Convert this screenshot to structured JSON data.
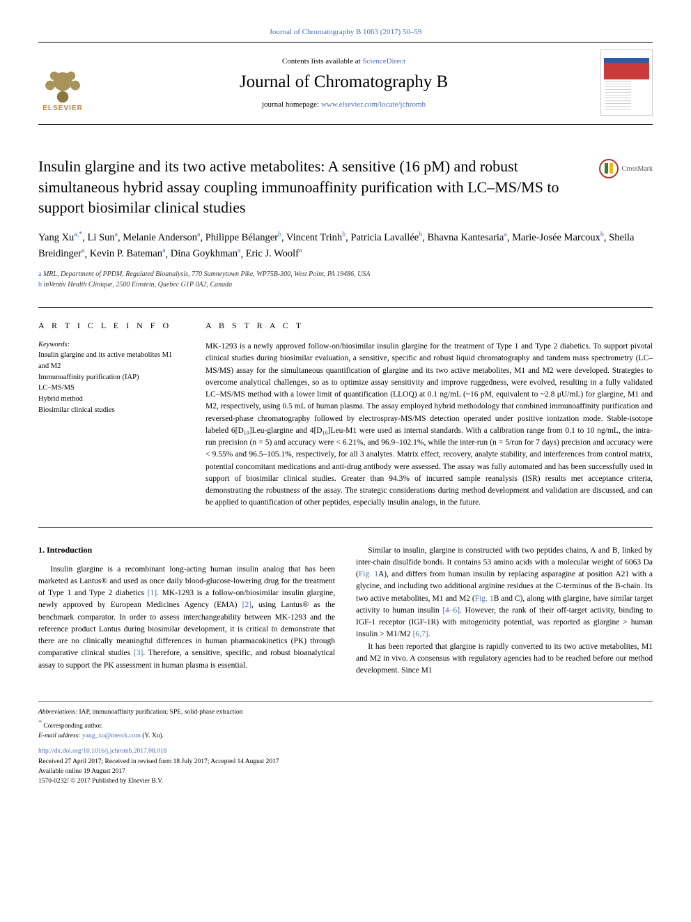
{
  "topLink": "Journal of Chromatography B 1063 (2017) 50–59",
  "header": {
    "contentsPrefix": "Contents lists available at ",
    "scienceDirect": "ScienceDirect",
    "journalName": "Journal of Chromatography B",
    "homepagePrefix": "journal homepage: ",
    "homepageUrl": "www.elsevier.com/locate/jchromb",
    "elsevierLabel": "ELSEVIER"
  },
  "crossmarkLabel": "CrossMark",
  "title": "Insulin glargine and its two active metabolites: A sensitive (16 pM) and robust simultaneous hybrid assay coupling immunoaffinity purification with LC–MS/MS to support biosimilar clinical studies",
  "authors": [
    {
      "name": "Yang Xu",
      "aff": "a,*"
    },
    {
      "name": "Li Sun",
      "aff": "a"
    },
    {
      "name": "Melanie Anderson",
      "aff": "a"
    },
    {
      "name": "Philippe Bélanger",
      "aff": "b"
    },
    {
      "name": "Vincent Trinh",
      "aff": "b"
    },
    {
      "name": "Patricia Lavallée",
      "aff": "b"
    },
    {
      "name": "Bhavna Kantesaria",
      "aff": "a"
    },
    {
      "name": "Marie-Josée Marcoux",
      "aff": "b"
    },
    {
      "name": "Sheila Breidinger",
      "aff": "a"
    },
    {
      "name": "Kevin P. Bateman",
      "aff": "a"
    },
    {
      "name": "Dina Goykhman",
      "aff": "a"
    },
    {
      "name": "Eric J. Woolf",
      "aff": "a"
    }
  ],
  "affiliations": [
    {
      "label": "a",
      "text": "MRL, Department of PPDM, Regulated Bioanalysis, 770 Sumneytown Pike, WP75B-300, West Point, PA 19486, USA"
    },
    {
      "label": "b",
      "text": "inVentiv Health Clinique, 2500 Einstein, Quebec G1P 0A2, Canada"
    }
  ],
  "articleInfo": {
    "heading": "A R T I C L E  I N F O",
    "keywordsLabel": "Keywords:",
    "keywords": [
      "Insulin glargine and its active metabolites M1 and M2",
      "Immunoaffinity purification (IAP)",
      "LC–MS/MS",
      "Hybrid method",
      "Biosimilar clinical studies"
    ]
  },
  "abstract": {
    "heading": "A B S T R A C T",
    "text": "MK-1293 is a newly approved follow-on/biosimilar insulin glargine for the treatment of Type 1 and Type 2 diabetics. To support pivotal clinical studies during biosimilar evaluation, a sensitive, specific and robust liquid chromatography and tandem mass spectrometry (LC–MS/MS) assay for the simultaneous quantification of glargine and its two active metabolites, M1 and M2 were developed. Strategies to overcome analytical challenges, so as to optimize assay sensitivity and improve ruggedness, were evolved, resulting in a fully validated LC–MS/MS method with a lower limit of quantification (LLOQ) at 0.1 ng/mL (~16 pM, equivalent to ~2.8 μU/mL) for glargine, M1 and M2, respectively, using 0.5 mL of human plasma. The assay employed hybrid methodology that combined immunoaffinity purification and reversed-phase chromatography followed by electrospray-MS/MS detection operated under positive ionization mode. Stable-isotope labeled 6[D₁₀]Leu-glargine and 4[D₁₀]Leu-M1 were used as internal standards. With a calibration range from 0.1 to 10 ng/mL, the intra-run precision (n = 5) and accuracy were < 6.21%, and 96.9–102.1%, while the inter-run (n = 5/run for 7 days) precision and accuracy were < 9.55% and 96.5–105.1%, respectively, for all 3 analytes. Matrix effect, recovery, analyte stability, and interferences from control matrix, potential concomitant medications and anti-drug antibody were assessed. The assay was fully automated and has been successfully used in support of biosimilar clinical studies. Greater than 94.3% of incurred sample reanalysis (ISR) results met acceptance criteria, demonstrating the robustness of the assay. The strategic considerations during method development and validation are discussed, and can be applied to quantification of other peptides, especially insulin analogs, in the future."
  },
  "body": {
    "sectionHeading": "1. Introduction",
    "p1a": "Insulin glargine is a recombinant long-acting human insulin analog that has been marketed as Lantus® and used as once daily blood-glucose-lowering drug for the treatment of Type 1 and Type 2 diabetics ",
    "cite1": "[1]",
    "p1b": ". MK-1293 is a follow-on/biosimilar insulin glargine, newly approved by European Medicines Agency (EMA) ",
    "cite2": "[2]",
    "p1c": ", using Lantus® as the benchmark comparator. In order to assess interchangeability between MK-1293 and the reference product Lantus during biosimilar development, it is critical to demonstrate that there are no clinically meaningful differences in human pharmacokinetics (PK) through comparative clinical studies ",
    "cite3": "[3]",
    "p1d": ". Therefore, a sensitive, specific, and robust bioanalytical assay to support the PK assessment in human plasma is essential.",
    "p2a": "Similar to insulin, glargine is constructed with two peptides chains, A and B, linked by inter-chain disulfide bonds. It contains 53 amino acids with a molecular weight of 6063 Da (",
    "fig1a": "Fig. 1",
    "p2b": "A), and differs from human insulin by replacing asparagine at position A21 with a glycine, and including two additional arginine residues at the C-terminus of the B-chain. Its two active metabolites, M1 and M2 (",
    "fig1b": "Fig. 1",
    "p2c": "B and C), along with glargine, have similar target activity to human insulin ",
    "cite46": "[4–6]",
    "p2d": ". However, the rank of their off-target activity, binding to IGF-1 receptor (IGF-1R) with mitogenicity potential, was reported as glargine > human insulin > M1/M2 ",
    "cite67": "[6,7]",
    "p2e": ".",
    "p3": "It has been reported that glargine is rapidly converted to its two active metabolites, M1 and M2 in vivo. A consensus with regulatory agencies had to be reached before our method development. Since M1"
  },
  "footer": {
    "abbrevLabel": "Abbreviations:",
    "abbrevText": " IAP, immunoaffinity purification; SPE, solid-phase extraction",
    "correspondingMark": "*",
    "correspondingText": " Corresponding author.",
    "emailLabel": "E-mail address: ",
    "email": "yang_xu@merck.com",
    "emailSuffix": " (Y. Xu).",
    "doi": "http://dx.doi.org/10.1016/j.jchromb.2017.08.018",
    "received": "Received 27 April 2017; Received in revised form 18 July 2017; Accepted 14 August 2017",
    "online": "Available online 19 August 2017",
    "copyright": "1570-0232/ © 2017 Published by Elsevier B.V."
  },
  "colors": {
    "link": "#4a6db5",
    "elsevierOrange": "#e67817",
    "crossmarkRed": "#b5302a"
  }
}
